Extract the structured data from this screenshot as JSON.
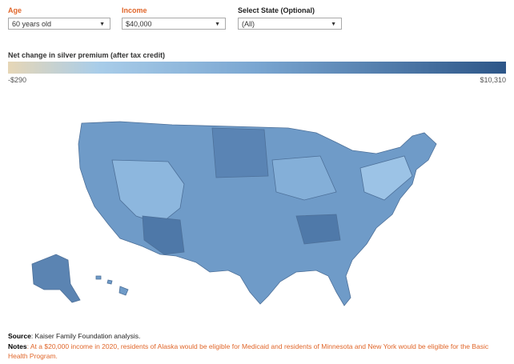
{
  "filters": [
    {
      "label": "Age",
      "value": "60 years old"
    },
    {
      "label": "Income",
      "value": "$40,000"
    },
    {
      "label": "Select State (Optional)",
      "value": "(All)"
    }
  ],
  "legend": {
    "title": "Net change in silver premium (after tax credit)",
    "min_label": "-$290",
    "max_label": "$10,310"
  },
  "footer": {
    "source_label": "Source",
    "source_text": ": Kaiser Family Foundation analysis.",
    "notes_label": "Notes",
    "notes_text": ": At a $20,000 income in 2020, residents of Alaska would be eligible for Medicaid and residents of Minnesota and New York would be eligible for the Basic Health Program."
  }
}
